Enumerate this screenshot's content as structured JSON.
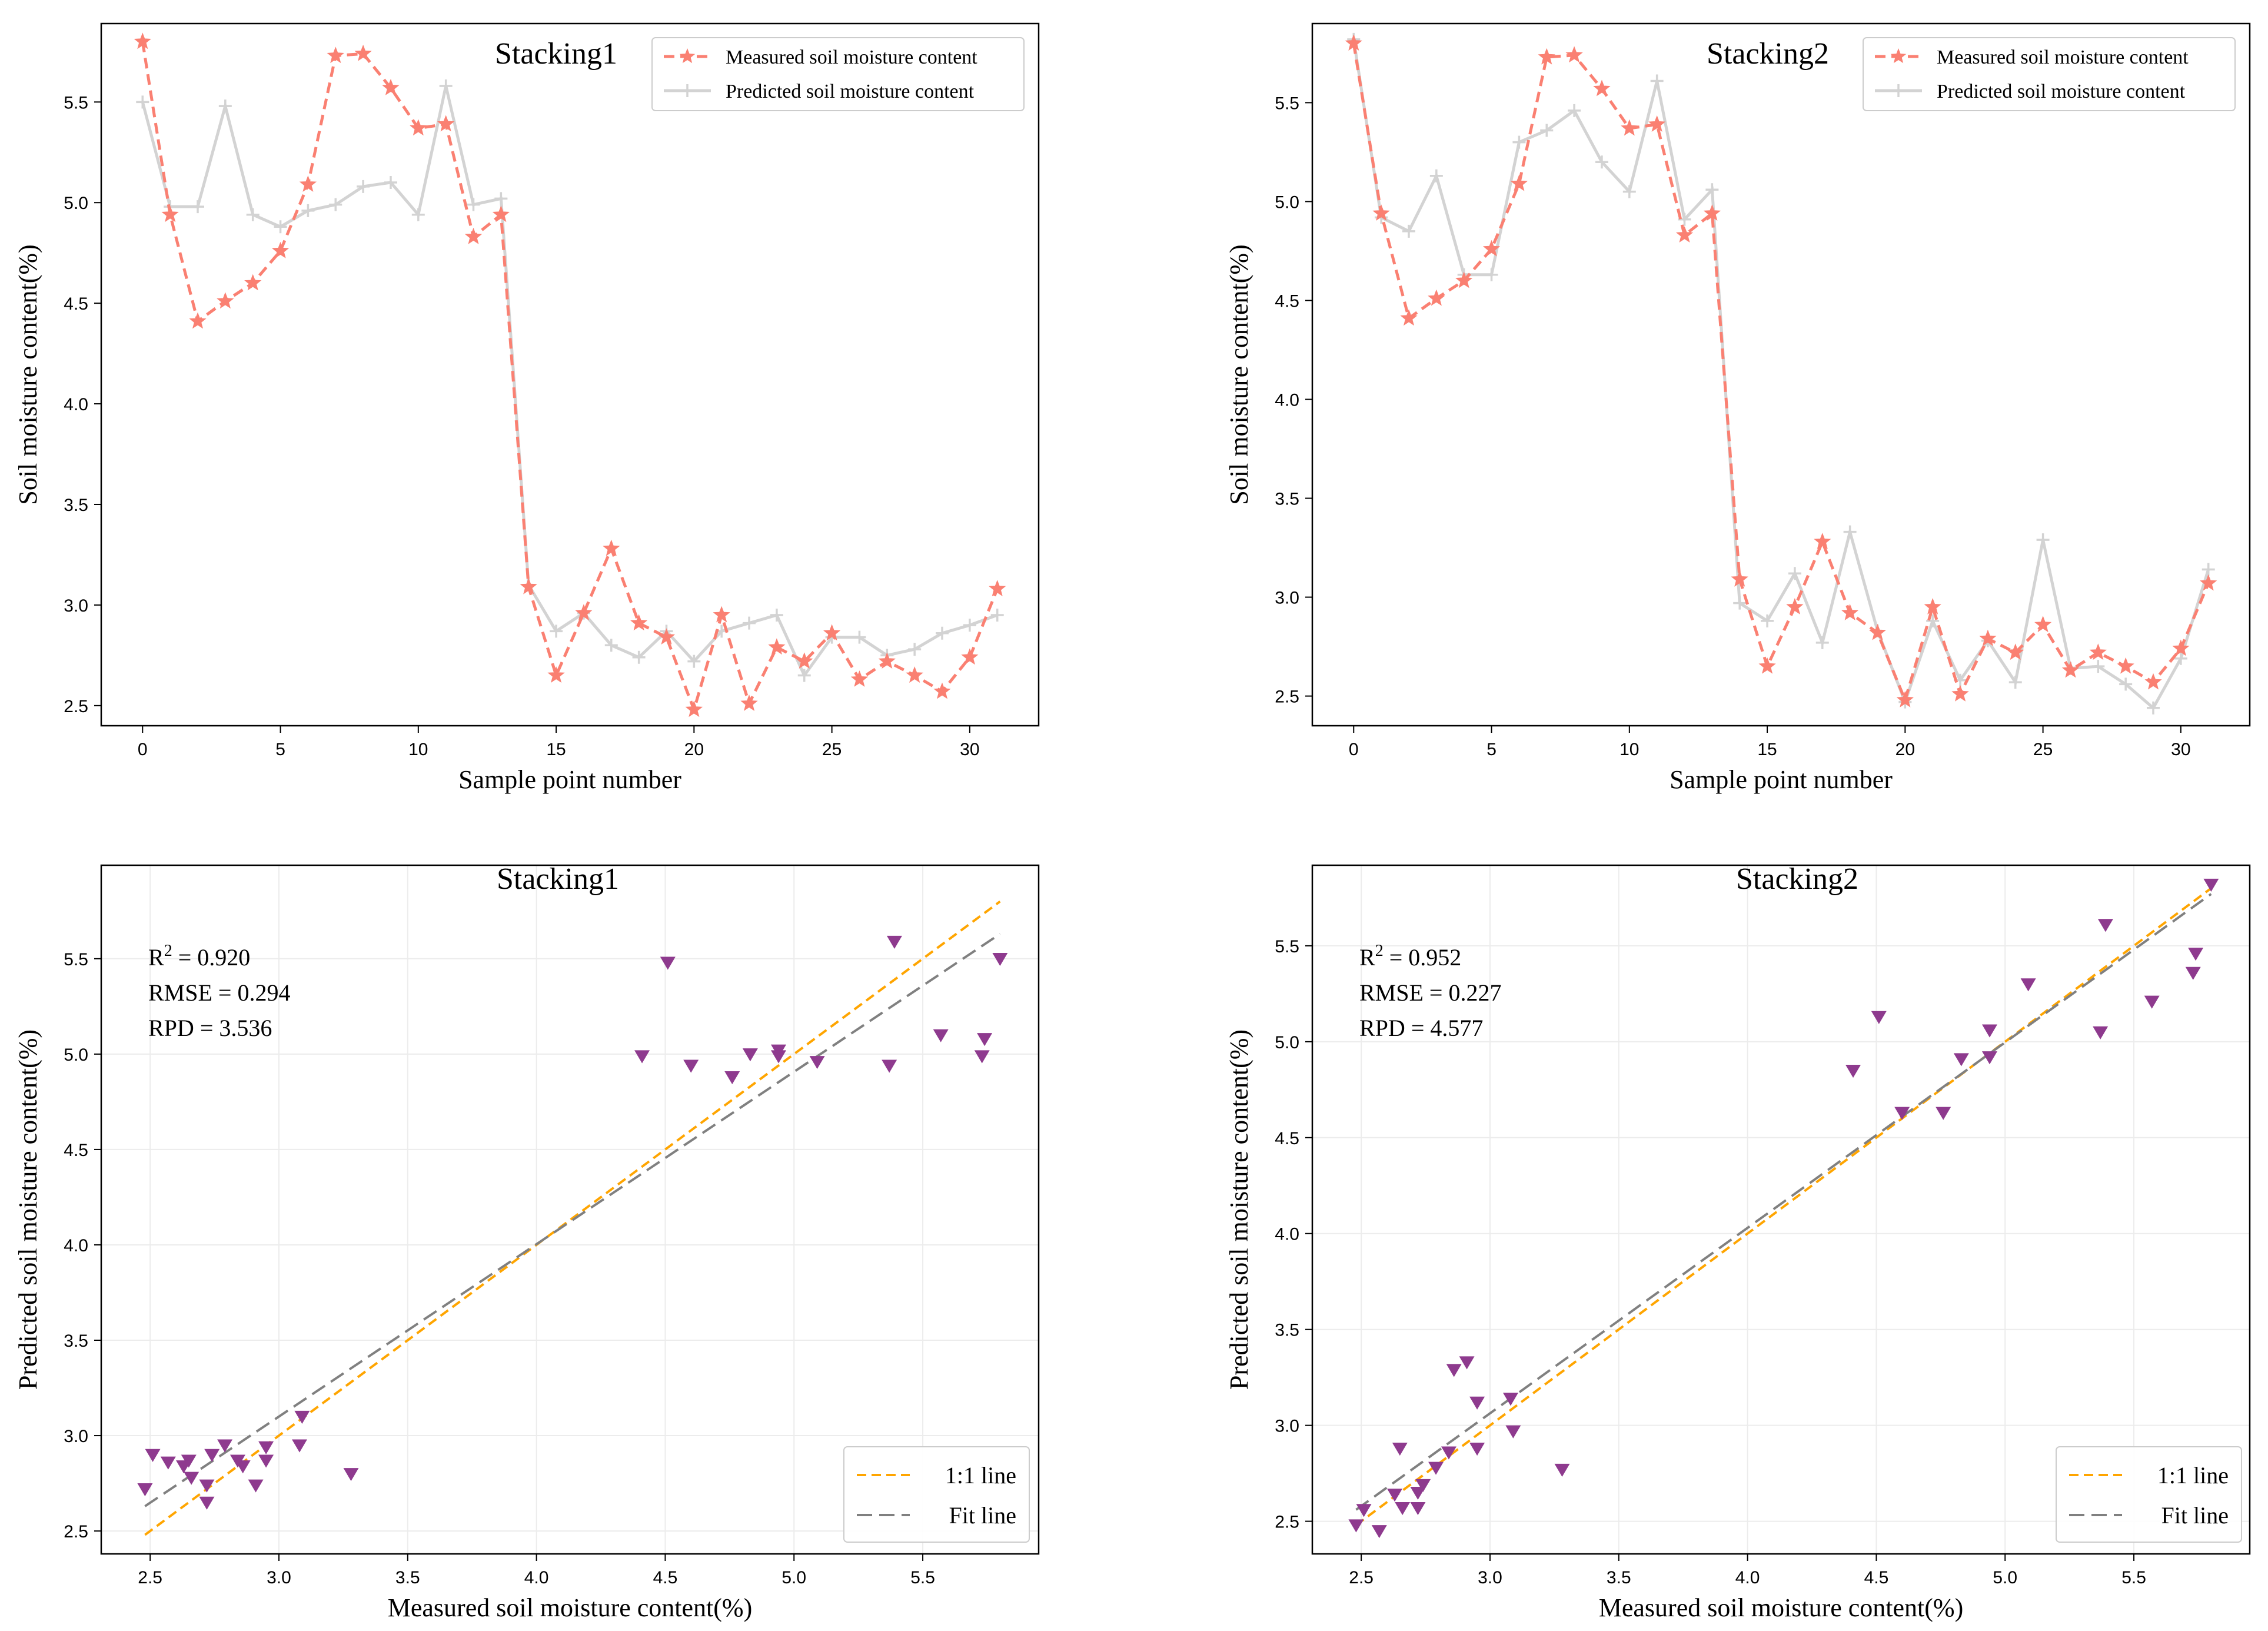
{
  "colors": {
    "measured": "#fa8072",
    "predicted": "#d3d3d3",
    "scatter": "#8e3a8e",
    "oneToOne": "#ffa500",
    "fit": "#808080",
    "grid": "#ececec",
    "frame": "#000000"
  },
  "chart_data": [
    {
      "id": "ts1",
      "type": "line",
      "title": "Stacking1",
      "xlabel": "Sample point number",
      "ylabel": "Soil moisture content(%)",
      "xlim": [
        -1.5,
        32.5
      ],
      "ylim": [
        2.4,
        5.89
      ],
      "xticks": [
        0,
        5,
        10,
        15,
        20,
        25,
        30
      ],
      "yticks": [
        2.5,
        3.0,
        3.5,
        4.0,
        4.5,
        5.0,
        5.5
      ],
      "grid": false,
      "legend_position": "top-right",
      "x": [
        0,
        1,
        2,
        3,
        4,
        5,
        6,
        7,
        8,
        9,
        10,
        11,
        12,
        13,
        14,
        15,
        16,
        17,
        18,
        19,
        20,
        21,
        22,
        23,
        24,
        25,
        26,
        27,
        28,
        29,
        30,
        31
      ],
      "series": [
        {
          "name": "Measured soil moisture content",
          "style": "measured",
          "values": [
            5.8,
            4.94,
            4.41,
            4.51,
            4.6,
            4.76,
            5.09,
            5.73,
            5.74,
            5.57,
            5.37,
            5.39,
            4.83,
            4.94,
            3.09,
            2.65,
            2.96,
            3.28,
            2.91,
            2.84,
            2.48,
            2.95,
            2.51,
            2.79,
            2.72,
            2.86,
            2.63,
            2.72,
            2.65,
            2.57,
            2.74,
            3.08
          ]
        },
        {
          "name": "Predicted soil moisture content",
          "style": "predicted",
          "values": [
            5.5,
            4.98,
            4.98,
            5.48,
            4.94,
            4.88,
            4.96,
            4.99,
            5.08,
            5.1,
            4.94,
            5.58,
            4.99,
            5.02,
            3.1,
            2.87,
            2.96,
            2.8,
            2.74,
            2.87,
            2.72,
            2.87,
            2.91,
            2.95,
            2.65,
            2.84,
            2.84,
            2.75,
            2.78,
            2.86,
            2.9,
            2.95
          ]
        }
      ]
    },
    {
      "id": "ts2",
      "type": "line",
      "title": "Stacking2",
      "xlabel": "Sample point number",
      "ylabel": "Soil moisture content(%)",
      "xlim": [
        -1.5,
        32.5
      ],
      "ylim": [
        2.35,
        5.9
      ],
      "xticks": [
        0,
        5,
        10,
        15,
        20,
        25,
        30
      ],
      "yticks": [
        2.5,
        3.0,
        3.5,
        4.0,
        4.5,
        5.0,
        5.5
      ],
      "grid": false,
      "legend_position": "top-right",
      "x": [
        0,
        1,
        2,
        3,
        4,
        5,
        6,
        7,
        8,
        9,
        10,
        11,
        12,
        13,
        14,
        15,
        16,
        17,
        18,
        19,
        20,
        21,
        22,
        23,
        24,
        25,
        26,
        27,
        28,
        29,
        30,
        31
      ],
      "series": [
        {
          "name": "Measured soil moisture content",
          "style": "measured",
          "values": [
            5.8,
            4.94,
            4.41,
            4.51,
            4.6,
            4.76,
            5.09,
            5.73,
            5.74,
            5.57,
            5.37,
            5.39,
            4.83,
            4.94,
            3.09,
            2.65,
            2.95,
            3.28,
            2.92,
            2.82,
            2.48,
            2.95,
            2.51,
            2.79,
            2.72,
            2.86,
            2.63,
            2.72,
            2.65,
            2.57,
            2.74,
            3.07
          ]
        },
        {
          "name": "Predicted soil moisture content",
          "style": "predicted",
          "values": [
            5.82,
            4.92,
            4.85,
            5.13,
            4.63,
            4.63,
            5.3,
            5.36,
            5.46,
            5.2,
            5.05,
            5.61,
            4.91,
            5.06,
            2.97,
            2.88,
            3.12,
            2.77,
            3.33,
            2.83,
            2.47,
            2.88,
            2.58,
            2.78,
            2.57,
            3.29,
            2.64,
            2.65,
            2.56,
            2.44,
            2.69,
            3.14
          ]
        }
      ]
    },
    {
      "id": "sc1",
      "type": "scatter",
      "title": "Stacking1",
      "xlabel": "Measured soil moisture content(%)",
      "ylabel": "Predicted soil moisture content(%)",
      "xlim": [
        2.31,
        5.95
      ],
      "ylim": [
        2.38,
        5.99
      ],
      "xticks": [
        2.5,
        3.0,
        3.5,
        4.0,
        4.5,
        5.0,
        5.5
      ],
      "yticks": [
        2.5,
        3.0,
        3.5,
        4.0,
        4.5,
        5.0,
        5.5
      ],
      "grid": true,
      "legend_position": "bottom-right",
      "stats": {
        "r2_label": "R",
        "r2_sup": "2",
        "r2_text": " = 0.920",
        "rmse": "RMSE = 0.294",
        "rpd": "RPD = 3.536"
      },
      "one_to_one_label": "1:1 line",
      "fit_label": "Fit line",
      "fit": {
        "x": [
          2.48,
          5.8
        ],
        "y": [
          2.63,
          5.63
        ]
      },
      "points": [
        [
          2.48,
          2.72
        ],
        [
          2.51,
          2.9
        ],
        [
          2.57,
          2.86
        ],
        [
          2.63,
          2.84
        ],
        [
          2.65,
          2.87
        ],
        [
          2.66,
          2.78
        ],
        [
          2.72,
          2.65
        ],
        [
          2.72,
          2.74
        ],
        [
          2.74,
          2.9
        ],
        [
          2.79,
          2.95
        ],
        [
          2.84,
          2.87
        ],
        [
          2.86,
          2.84
        ],
        [
          2.91,
          2.74
        ],
        [
          2.95,
          2.87
        ],
        [
          2.95,
          2.94
        ],
        [
          3.08,
          2.95
        ],
        [
          3.09,
          3.1
        ],
        [
          3.28,
          2.8
        ],
        [
          4.41,
          4.99
        ],
        [
          4.51,
          5.48
        ],
        [
          4.6,
          4.94
        ],
        [
          4.76,
          4.88
        ],
        [
          4.83,
          5.0
        ],
        [
          4.94,
          5.02
        ],
        [
          4.94,
          4.99
        ],
        [
          5.09,
          4.96
        ],
        [
          5.37,
          4.94
        ],
        [
          5.39,
          5.59
        ],
        [
          5.57,
          5.1
        ],
        [
          5.73,
          4.99
        ],
        [
          5.74,
          5.08
        ],
        [
          5.8,
          5.5
        ]
      ]
    },
    {
      "id": "sc2",
      "type": "scatter",
      "title": "Stacking2",
      "xlabel": "Measured soil moisture content(%)",
      "ylabel": "Predicted soil moisture content(%)",
      "xlim": [
        2.31,
        5.95
      ],
      "ylim": [
        2.33,
        5.92
      ],
      "xticks": [
        2.5,
        3.0,
        3.5,
        4.0,
        4.5,
        5.0,
        5.5
      ],
      "yticks": [
        2.5,
        3.0,
        3.5,
        4.0,
        4.5,
        5.0,
        5.5
      ],
      "grid": true,
      "legend_position": "bottom-right",
      "stats": {
        "r2_label": "R",
        "r2_sup": "2",
        "r2_text": " = 0.952",
        "rmse": "RMSE = 0.227",
        "rpd": "RPD = 4.577"
      },
      "one_to_one_label": "1:1 line",
      "fit_label": "Fit line",
      "fit": {
        "x": [
          2.48,
          5.8
        ],
        "y": [
          2.56,
          5.77
        ]
      },
      "points": [
        [
          2.48,
          2.48
        ],
        [
          2.51,
          2.56
        ],
        [
          2.57,
          2.45
        ],
        [
          2.63,
          2.64
        ],
        [
          2.65,
          2.88
        ],
        [
          2.66,
          2.57
        ],
        [
          2.72,
          2.57
        ],
        [
          2.72,
          2.65
        ],
        [
          2.74,
          2.69
        ],
        [
          2.79,
          2.78
        ],
        [
          2.84,
          2.86
        ],
        [
          2.86,
          3.29
        ],
        [
          2.91,
          3.33
        ],
        [
          2.95,
          3.12
        ],
        [
          2.95,
          2.88
        ],
        [
          3.08,
          3.14
        ],
        [
          3.09,
          2.97
        ],
        [
          3.28,
          2.77
        ],
        [
          4.41,
          4.85
        ],
        [
          4.51,
          5.13
        ],
        [
          4.6,
          4.63
        ],
        [
          4.76,
          4.63
        ],
        [
          4.83,
          4.91
        ],
        [
          4.94,
          4.92
        ],
        [
          4.94,
          5.06
        ],
        [
          5.09,
          5.3
        ],
        [
          5.37,
          5.05
        ],
        [
          5.39,
          5.61
        ],
        [
          5.57,
          5.21
        ],
        [
          5.73,
          5.36
        ],
        [
          5.74,
          5.46
        ],
        [
          5.8,
          5.82
        ]
      ]
    }
  ]
}
